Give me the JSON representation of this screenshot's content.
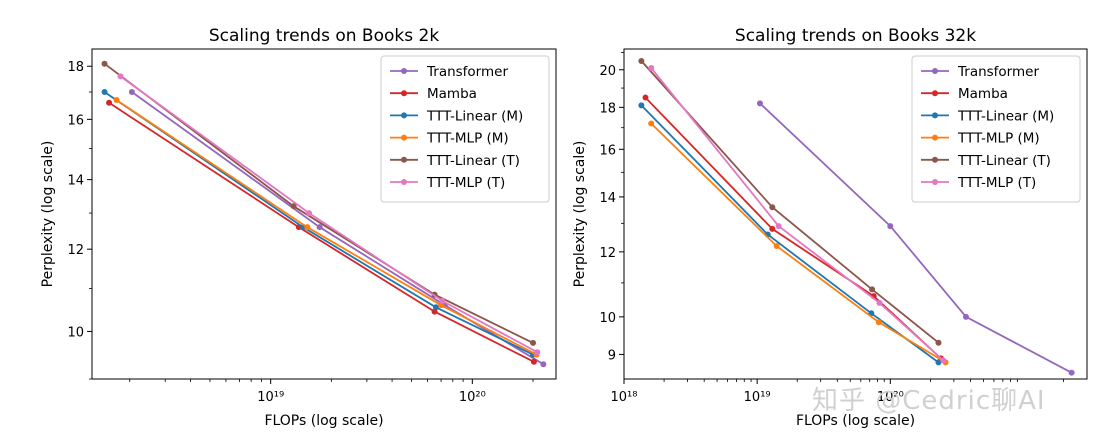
{
  "watermark": "知乎 @Cedric聊AI",
  "chart_data": [
    {
      "type": "line",
      "title": "Scaling trends on Books 2k",
      "xlabel": "FLOPs (log scale)",
      "ylabel": "Perplexity (log scale)",
      "xscale": "log",
      "yscale": "log",
      "xlim": [
        1.3e+18,
        2.6e+20
      ],
      "ylim": [
        9.0,
        18.7
      ],
      "xticks": [
        {
          "value": 1e+19,
          "label": "10¹⁹"
        },
        {
          "value": 1e+20,
          "label": "10²⁰"
        }
      ],
      "yticks": [
        {
          "value": 10,
          "label": "10"
        },
        {
          "value": 12,
          "label": "12"
        },
        {
          "value": 14,
          "label": "14"
        },
        {
          "value": 16,
          "label": "16"
        },
        {
          "value": 18,
          "label": "18"
        }
      ],
      "grid": false,
      "legend": "top-right",
      "series": [
        {
          "name": "Transformer",
          "color": "#9467bd",
          "points": [
            [
              2.05e+18,
              17.0
            ],
            [
              1.75e+19,
              12.6
            ],
            [
              7.3e+19,
              10.6
            ],
            [
              2.25e+20,
              9.3
            ]
          ]
        },
        {
          "name": "Mamba",
          "color": "#d62728",
          "points": [
            [
              1.58e+18,
              16.6
            ],
            [
              1.38e+19,
              12.6
            ],
            [
              6.5e+19,
              10.45
            ],
            [
              2.02e+20,
              9.35
            ]
          ]
        },
        {
          "name": "TTT-Linear (M)",
          "color": "#1f77b4",
          "points": [
            [
              1.5e+18,
              17.0
            ],
            [
              1.45e+19,
              12.6
            ],
            [
              6.6e+19,
              10.55
            ],
            [
              2e+20,
              9.5
            ]
          ]
        },
        {
          "name": "TTT-MLP (M)",
          "color": "#ff7f0e",
          "points": [
            [
              1.72e+18,
              16.7
            ],
            [
              1.52e+19,
              12.6
            ],
            [
              7e+19,
              10.6
            ],
            [
              2.08e+20,
              9.5
            ]
          ]
        },
        {
          "name": "TTT-Linear (T)",
          "color": "#8c564b",
          "points": [
            [
              1.5e+18,
              18.1
            ],
            [
              1.3e+19,
              13.2
            ],
            [
              6.5e+19,
              10.85
            ],
            [
              2e+20,
              9.75
            ]
          ]
        },
        {
          "name": "TTT-MLP (T)",
          "color": "#e377c2",
          "points": [
            [
              1.8e+18,
              17.6
            ],
            [
              1.55e+19,
              13.0
            ],
            [
              7.1e+19,
              10.7
            ],
            [
              2.1e+20,
              9.55
            ]
          ]
        }
      ]
    },
    {
      "type": "line",
      "title": "Scaling trends on Books 32k",
      "xlabel": "FLOPs (log scale)",
      "ylabel": "Perplexity (log scale)",
      "xscale": "log",
      "yscale": "log",
      "xlim": [
        1e+18,
        3e+21
      ],
      "ylim": [
        8.4,
        21.2
      ],
      "xticks": [
        {
          "value": 1e+18,
          "label": "10¹⁸"
        },
        {
          "value": 1e+19,
          "label": "10¹⁹"
        },
        {
          "value": 1e+20,
          "label": "10²⁰"
        }
      ],
      "yticks": [
        {
          "value": 9,
          "label": "9"
        },
        {
          "value": 10,
          "label": "10"
        },
        {
          "value": 12,
          "label": "12"
        },
        {
          "value": 14,
          "label": "14"
        },
        {
          "value": 16,
          "label": "16"
        },
        {
          "value": 18,
          "label": "18"
        },
        {
          "value": 20,
          "label": "20"
        }
      ],
      "grid": false,
      "legend": "top-right",
      "series": [
        {
          "name": "Transformer",
          "color": "#9467bd",
          "points": [
            [
              1.05e+19,
              18.2
            ],
            [
              1e+20,
              12.9
            ],
            [
              3.7e+20,
              10.0
            ],
            [
              2.3e+21,
              8.55
            ]
          ]
        },
        {
          "name": "Mamba",
          "color": "#d62728",
          "points": [
            [
              1.45e+18,
              18.5
            ],
            [
              1.3e+19,
              12.8
            ],
            [
              7.5e+19,
              10.6
            ],
            [
              2.4e+20,
              8.9
            ]
          ]
        },
        {
          "name": "TTT-Linear (M)",
          "color": "#1f77b4",
          "points": [
            [
              1.35e+18,
              18.1
            ],
            [
              1.2e+19,
              12.6
            ],
            [
              7.2e+19,
              10.1
            ],
            [
              2.3e+20,
              8.8
            ]
          ]
        },
        {
          "name": "TTT-MLP (M)",
          "color": "#ff7f0e",
          "points": [
            [
              1.6e+18,
              17.2
            ],
            [
              1.4e+19,
              12.2
            ],
            [
              8.2e+19,
              9.85
            ],
            [
              2.6e+20,
              8.8
            ]
          ]
        },
        {
          "name": "TTT-Linear (T)",
          "color": "#8c564b",
          "points": [
            [
              1.35e+18,
              20.5
            ],
            [
              1.3e+19,
              13.6
            ],
            [
              7.3e+19,
              10.8
            ],
            [
              2.3e+20,
              9.3
            ]
          ]
        },
        {
          "name": "TTT-MLP (T)",
          "color": "#e377c2",
          "points": [
            [
              1.6e+18,
              20.1
            ],
            [
              1.45e+19,
              12.9
            ],
            [
              8.3e+19,
              10.4
            ],
            [
              2.5e+20,
              8.85
            ]
          ]
        }
      ]
    }
  ]
}
